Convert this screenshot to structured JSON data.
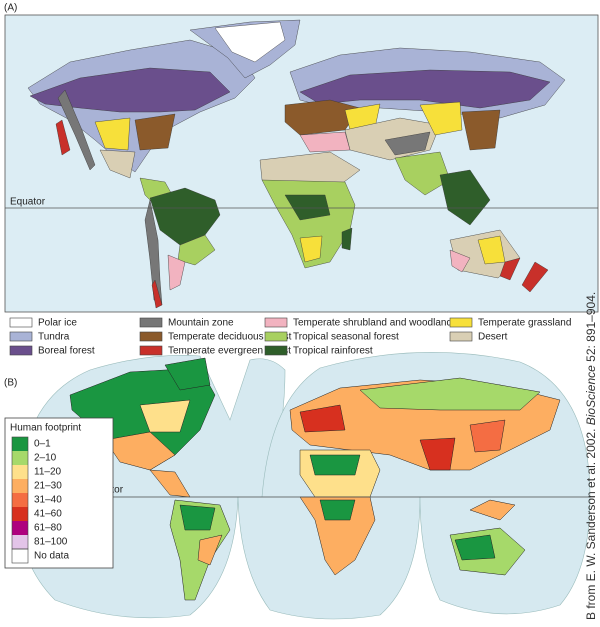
{
  "panel_a": {
    "label": "(A)",
    "equator_label": "Equator",
    "legend": [
      {
        "label": "Polar ice",
        "color": "#ffffff"
      },
      {
        "label": "Tundra",
        "color": "#a9b3d6"
      },
      {
        "label": "Boreal forest",
        "color": "#6a4f8c"
      },
      {
        "label": "Mountain zone",
        "color": "#777777"
      },
      {
        "label": "Temperate deciduous forest",
        "color": "#8b5a2b"
      },
      {
        "label": "Temperate evergreen forest",
        "color": "#c8302a"
      },
      {
        "label": "Temperate shrubland and woodland",
        "color": "#f2b3c0"
      },
      {
        "label": "Tropical seasonal forest",
        "color": "#a8d060"
      },
      {
        "label": "Tropical rainforest",
        "color": "#2f5e2a"
      },
      {
        "label": "Temperate grassland",
        "color": "#f7e03a"
      },
      {
        "label": "Desert",
        "color": "#d9cfb4"
      }
    ]
  },
  "panel_b": {
    "label": "(B)",
    "equator_label": "Equator",
    "legend_title": "Human footprint",
    "legend": [
      {
        "label": "0–1",
        "color": "#1a9641"
      },
      {
        "label": "2–10",
        "color": "#a6d96a"
      },
      {
        "label": "11–20",
        "color": "#fee08b"
      },
      {
        "label": "21–30",
        "color": "#fdae61"
      },
      {
        "label": "31–40",
        "color": "#f46d43"
      },
      {
        "label": "41–60",
        "color": "#d7301f"
      },
      {
        "label": "61–80",
        "color": "#ae017e"
      },
      {
        "label": "81–100",
        "color": "#e3c4e8"
      },
      {
        "label": "No data",
        "color": "#ffffff"
      }
    ]
  },
  "credit": {
    "prefix": "B from E. W. Sanderson et al. 2002. ",
    "journal": "BioScience",
    "suffix": " 52: 891–904."
  }
}
